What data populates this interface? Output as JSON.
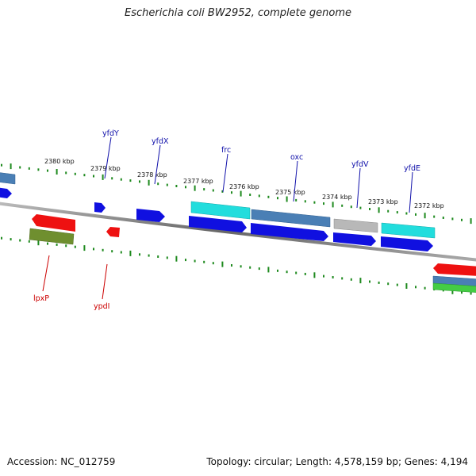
{
  "header": {
    "title": "Escherichia coli BW2952, complete genome"
  },
  "footer": {
    "accession": "Accession: NC_012759",
    "stats": "Topology: circular; Length: 4,578,159 bp; Genes: 4,194"
  },
  "colors": {
    "forward_label": "#1010aa",
    "reverse_label": "#cc0000",
    "tick": "#1f8a1f",
    "backbone": "#777777",
    "cds_blue": "#1010e0",
    "cds_red": "#ee1111",
    "cyan": "#22dddd",
    "steelblue": "#4a7fb5",
    "gray": "#b8b8b8",
    "olive": "#6f8f2f",
    "green": "#44cc44"
  },
  "scale_labels": [
    "2380 kbp",
    "2379 kbp",
    "2378 kbp",
    "2377 kbp",
    "2376 kbp",
    "2375 kbp",
    "2374 kbp",
    "2373 kbp",
    "2372 kbp"
  ],
  "forward_genes": [
    "yfdY",
    "yfdX",
    "frc",
    "oxc",
    "yfdV",
    "yfdE"
  ],
  "reverse_genes": [
    "lpxP",
    "ypdI"
  ]
}
